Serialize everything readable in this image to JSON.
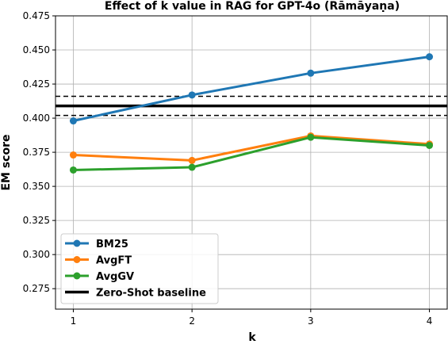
{
  "chart_data": {
    "type": "line",
    "title": "Effect of k value in RAG for GPT-4o (Rāmāyaṇa)",
    "xlabel": "k",
    "ylabel": "EM score",
    "x": [
      1,
      2,
      3,
      4
    ],
    "xticks": [
      "1",
      "2",
      "3",
      "4"
    ],
    "xlim": [
      0.85,
      4.15
    ],
    "ylim": [
      0.26,
      0.475
    ],
    "yticks": [
      0.275,
      0.3,
      0.325,
      0.35,
      0.375,
      0.4,
      0.425,
      0.45,
      0.475
    ],
    "ytick_labels": [
      "0.275",
      "0.300",
      "0.325",
      "0.350",
      "0.375",
      "0.400",
      "0.425",
      "0.450",
      "0.475"
    ],
    "grid": true,
    "legend_position": "lower-left",
    "series": [
      {
        "name": "BM25",
        "values": [
          0.398,
          0.417,
          0.433,
          0.445
        ],
        "color": "#1f77b4"
      },
      {
        "name": "AvgFT",
        "values": [
          0.373,
          0.369,
          0.387,
          0.381
        ],
        "color": "#ff7f0e"
      },
      {
        "name": "AvgGV",
        "values": [
          0.362,
          0.364,
          0.386,
          0.38
        ],
        "color": "#2ca02c"
      }
    ],
    "baseline": {
      "name": "Zero-Shot baseline",
      "value": 0.409,
      "band": [
        0.402,
        0.416
      ],
      "color": "#000000"
    }
  }
}
